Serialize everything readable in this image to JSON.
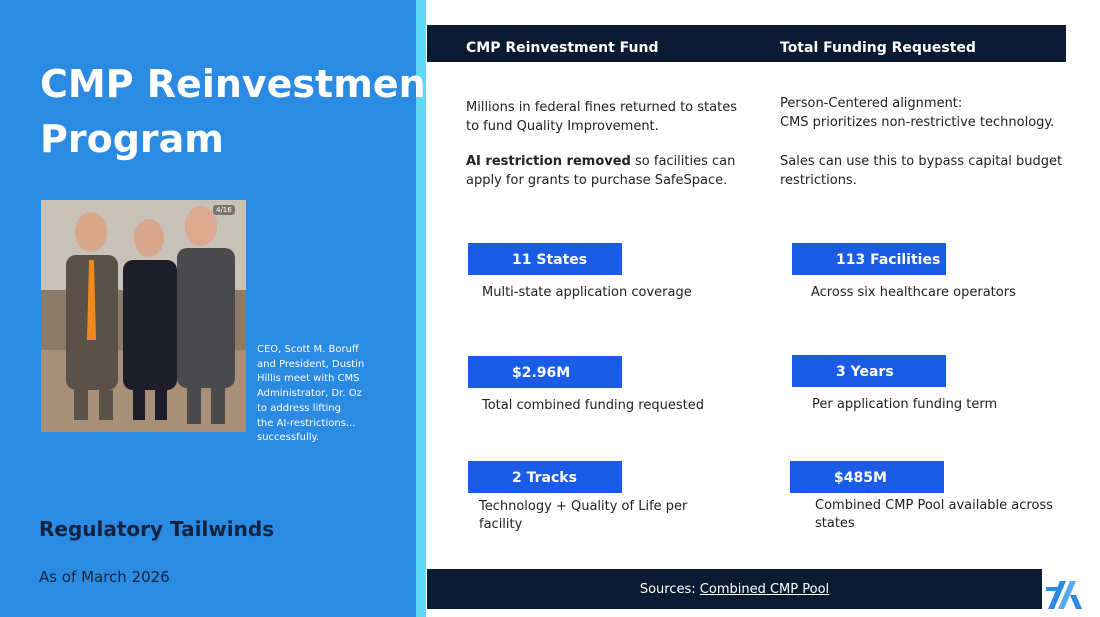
{
  "left_panel": {
    "title_lines": [
      "CMP Reinvestment",
      "Program"
    ],
    "photo_badge": "4/16",
    "caption_lines": [
      "CEO, Scott M. Boruff",
      "and President, Dustin",
      "Hillis meet with CMS",
      "Administrator, Dr. Oz",
      "to address lifting",
      "the AI-restrictions...",
      "successfully."
    ],
    "subtitle": "Regulatory Tailwinds",
    "date": "As of March 2026"
  },
  "header": {
    "columns": [
      "CMP Reinvestment Fund",
      "Total Funding Requested"
    ]
  },
  "left_column": {
    "paragraph_1": [
      "Millions in federal fines returned to states",
      "to fund Quality Improvement."
    ],
    "paragraph_2": {
      "bold": "AI restriction removed",
      "lines": [
        "so facilities can",
        "apply for grants to purchase SafeSpace."
      ]
    }
  },
  "right_column": {
    "paragraph_1": [
      "Person-Centered alignment:",
      "CMS prioritizes non-restrictive technology."
    ],
    "paragraph_2": [
      "Sales can use this to bypass capital budget",
      "restrictions."
    ]
  },
  "stats": [
    {
      "value": "11 States",
      "label": "Multi-state application coverage"
    },
    {
      "value": "113 Facilities",
      "label": "Across six healthcare operators"
    },
    {
      "value": "$2.96M",
      "label": "Total combined funding requested"
    },
    {
      "value": "3 Years",
      "label": "Per application funding term"
    },
    {
      "value": "2 Tracks",
      "label": "Technology + Quality of Life per facility"
    },
    {
      "value": "$485M",
      "label": "Combined CMP Pool available across states"
    }
  ],
  "footer": {
    "prefix": "Sources:",
    "link": "Combined CMP Pool"
  }
}
